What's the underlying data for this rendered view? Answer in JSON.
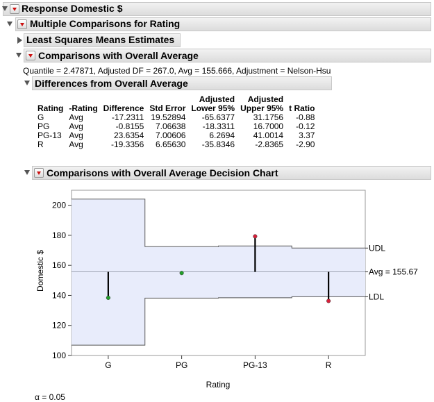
{
  "report": {
    "response_title": "Response Domestic $",
    "mc_title": "Multiple Comparisons for Rating",
    "lsm_title": "Least Squares Means Estimates",
    "cwoa_title": "Comparisons with Overall Average",
    "quantile_line": "Quantile = 2.47871, Adjusted DF = 267.0, Avg = 155.666, Adjustment = Nelson-Hsu",
    "diff_title": "Differences from Overall Average",
    "chart_title": "Comparisons with Overall Average Decision Chart",
    "alpha": "α = 0.05"
  },
  "table": {
    "headers_top": [
      "",
      "",
      "",
      "",
      "Adjusted",
      "Adjusted",
      ""
    ],
    "headers": [
      "Rating",
      "-Rating",
      "Difference",
      "Std Error",
      "Lower 95%",
      "Upper 95%",
      "t Ratio"
    ],
    "rows": [
      [
        "G",
        "Avg",
        "-17.2311",
        "19.52894",
        "-65.6377",
        "31.1756",
        "-0.88"
      ],
      [
        "PG",
        "Avg",
        "-0.8155",
        "7.06638",
        "-18.3311",
        "16.7000",
        "-0.12"
      ],
      [
        "PG-13",
        "Avg",
        "23.6354",
        "7.00606",
        "6.2694",
        "41.0014",
        "3.37"
      ],
      [
        "R",
        "Avg",
        "-19.3356",
        "6.65630",
        "-35.8346",
        "-2.8365",
        "-2.90"
      ]
    ]
  },
  "chart_data": {
    "type": "scatter",
    "title": "",
    "xlabel": "Rating",
    "ylabel": "Domestic $",
    "categories": [
      "G",
      "PG",
      "PG-13",
      "R"
    ],
    "ylim": [
      100,
      210
    ],
    "yticks": [
      100,
      120,
      140,
      160,
      180,
      200
    ],
    "avg": 155.666,
    "avg_label": "Avg = 155.67",
    "udl_label": "UDL",
    "ldl_label": "LDL",
    "means": [
      138.4,
      154.9,
      179.3,
      136.3
    ],
    "udl": [
      204.1,
      172.5,
      172.9,
      171.5
    ],
    "ldl": [
      106.9,
      138.2,
      138.4,
      139.1
    ],
    "point_colors": [
      "#22a02a",
      "#22a02a",
      "#d8203a",
      "#d8203a"
    ],
    "band_fill": "#e8ecfb",
    "band_stroke": "#555555",
    "avg_line_color": "#9aa0b0",
    "grid": false
  }
}
